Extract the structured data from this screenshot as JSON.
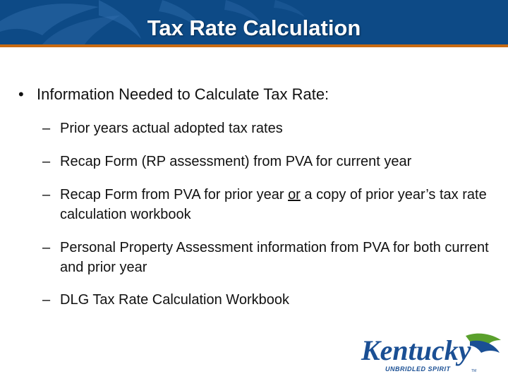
{
  "slide": {
    "title": "Tax Rate Calculation",
    "bullet": "Information Needed to Calculate Tax Rate:",
    "items": [
      {
        "text": "Prior years actual adopted tax rates"
      },
      {
        "text": "Recap Form (RP assessment) from PVA for current year"
      },
      {
        "pre": "Recap Form from PVA for prior year ",
        "emph": "or",
        "post": " a copy of prior year’s tax rate calculation workbook"
      },
      {
        "text": "Personal Property Assessment information from PVA for both current and prior year"
      },
      {
        "text": "DLG Tax Rate Calculation Workbook"
      }
    ]
  },
  "logo": {
    "wordmark": "Kentucky",
    "tagline": "UNBRIDLED SPIRIT",
    "tm": "TM"
  },
  "colors": {
    "header": "#0d4a86",
    "accent_stripe": "#c86a12",
    "logo_blue": "#1a4f94",
    "logo_green": "#5aa02c"
  }
}
